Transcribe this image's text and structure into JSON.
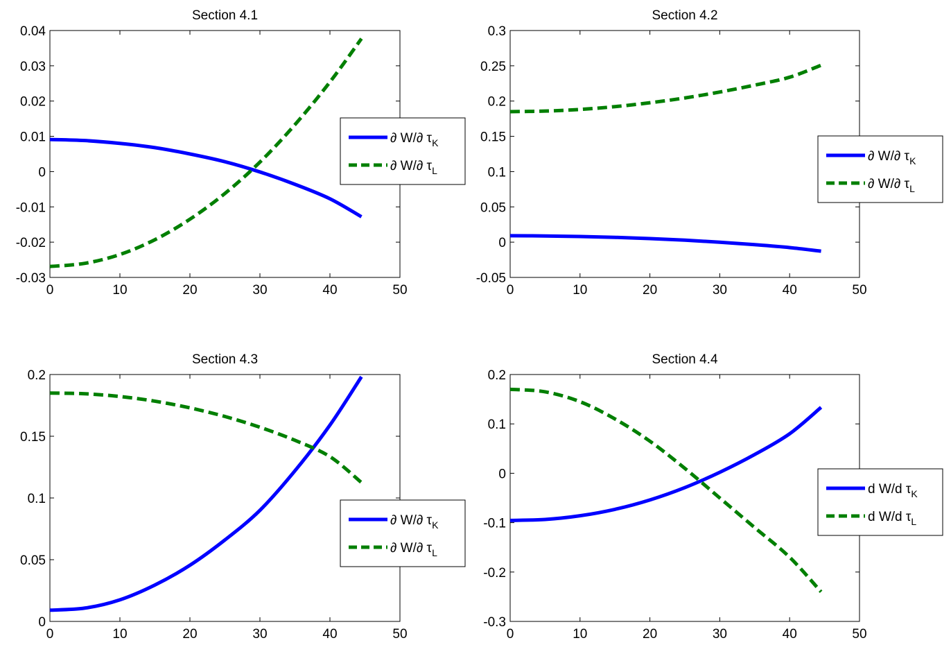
{
  "chart_data": [
    {
      "type": "line",
      "title": "Section 4.1",
      "xlim": [
        0,
        50
      ],
      "ylim": [
        -0.03,
        0.04
      ],
      "xticks": [
        "0",
        "10",
        "20",
        "30",
        "40",
        "50"
      ],
      "yticks": [
        "-0.03",
        "-0.02",
        "-0.01",
        "0",
        "0.01",
        "0.02",
        "0.03",
        "0.04"
      ],
      "legend_position": "right",
      "x": [
        0,
        5,
        10,
        15,
        20,
        25,
        30,
        35,
        40,
        44.5
      ],
      "series": [
        {
          "name": "∂ W/∂ τK",
          "label_main": "∂ W/∂ τ",
          "label_sub": "K",
          "color": "#0000ff",
          "style": "solid",
          "values": [
            0.0091,
            0.0088,
            0.008,
            0.0068,
            0.005,
            0.0028,
            -0.0001,
            -0.0036,
            -0.0077,
            -0.0128
          ]
        },
        {
          "name": "∂ W/∂ τL",
          "label_main": "∂ W/∂ τ",
          "label_sub": "L",
          "color": "#007f00",
          "style": "dashed",
          "values": [
            -0.0269,
            -0.026,
            -0.0235,
            -0.0193,
            -0.0135,
            -0.0062,
            0.0027,
            0.0133,
            0.0254,
            0.0377
          ]
        }
      ]
    },
    {
      "type": "line",
      "title": "Section 4.2",
      "xlim": [
        0,
        50
      ],
      "ylim": [
        -0.05,
        0.3
      ],
      "xticks": [
        "0",
        "10",
        "20",
        "30",
        "40",
        "50"
      ],
      "yticks": [
        "-0.05",
        "0",
        "0.05",
        "0.1",
        "0.15",
        "0.2",
        "0.25",
        "0.3"
      ],
      "legend_position": "right",
      "x": [
        0,
        5,
        10,
        15,
        20,
        25,
        30,
        35,
        40,
        44.5
      ],
      "series": [
        {
          "name": "∂ W/∂ τK",
          "label_main": "∂ W/∂ τ",
          "label_sub": "K",
          "color": "#0000ff",
          "style": "solid",
          "values": [
            0.0091,
            0.0088,
            0.008,
            0.0068,
            0.005,
            0.0028,
            -0.0001,
            -0.0036,
            -0.0077,
            -0.0128
          ]
        },
        {
          "name": "∂ W/∂ τL",
          "label_main": "∂ W/∂ τ",
          "label_sub": "L",
          "color": "#007f00",
          "style": "dashed",
          "values": [
            0.185,
            0.1858,
            0.1881,
            0.1921,
            0.1976,
            0.2044,
            0.2128,
            0.2226,
            0.2338,
            0.2508
          ]
        }
      ]
    },
    {
      "type": "line",
      "title": "Section 4.3",
      "xlim": [
        0,
        50
      ],
      "ylim": [
        0,
        0.2
      ],
      "xticks": [
        "0",
        "10",
        "20",
        "30",
        "40",
        "50"
      ],
      "yticks": [
        "0",
        "0.05",
        "0.1",
        "0.15",
        "0.2"
      ],
      "legend_position": "right",
      "x": [
        0,
        5,
        10,
        15,
        20,
        25,
        30,
        35,
        40,
        44.5
      ],
      "series": [
        {
          "name": "∂ W/∂ τK",
          "label_main": "∂ W/∂ τ",
          "label_sub": "K",
          "color": "#0000ff",
          "style": "solid",
          "values": [
            0.0091,
            0.0108,
            0.0175,
            0.0295,
            0.0455,
            0.066,
            0.09,
            0.122,
            0.159,
            0.1982
          ]
        },
        {
          "name": "∂ W/∂ τL",
          "label_main": "∂ W/∂ τ",
          "label_sub": "L",
          "color": "#007f00",
          "style": "dashed",
          "values": [
            0.185,
            0.1844,
            0.1822,
            0.1784,
            0.173,
            0.166,
            0.1573,
            0.1467,
            0.1335,
            0.1125
          ]
        }
      ]
    },
    {
      "type": "line",
      "title": "Section 4.4",
      "xlim": [
        0,
        50
      ],
      "ylim": [
        -0.3,
        0.2
      ],
      "xticks": [
        "0",
        "10",
        "20",
        "30",
        "40",
        "50"
      ],
      "yticks": [
        "-0.3",
        "-0.2",
        "-0.1",
        "0",
        "0.1",
        "0.2"
      ],
      "legend_position": "right",
      "x": [
        0,
        5,
        10,
        15,
        20,
        25,
        30,
        35,
        40,
        44.5
      ],
      "series": [
        {
          "name": "d W/d τK",
          "label_main": "d W/d τ",
          "label_sub": "K",
          "color": "#0000ff",
          "style": "solid",
          "values": [
            -0.0955,
            -0.0935,
            -0.086,
            -0.073,
            -0.054,
            -0.029,
            0.002,
            0.038,
            0.08,
            0.1335
          ]
        },
        {
          "name": "d W/d τL",
          "label_main": "d W/d τ",
          "label_sub": "L",
          "color": "#007f00",
          "style": "dashed",
          "values": [
            0.17,
            0.165,
            0.145,
            0.11,
            0.065,
            0.01,
            -0.05,
            -0.11,
            -0.17,
            -0.24
          ]
        }
      ]
    }
  ]
}
